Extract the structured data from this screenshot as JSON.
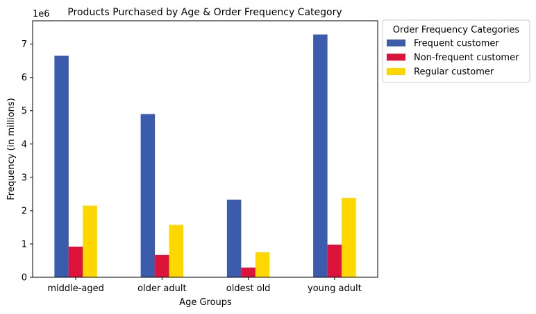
{
  "chart_data": {
    "type": "bar",
    "title": "Products Purchased by Age & Order Frequency Category",
    "xlabel": "Age Groups",
    "ylabel": "Frequency (in millions)",
    "y_exponent_label": "1e6",
    "categories": [
      "middle-aged",
      "older adult",
      "oldest old",
      "young adult"
    ],
    "series": [
      {
        "name": "Frequent customer",
        "color": "#3b5bad",
        "values": [
          6650000,
          4900000,
          2330000,
          7290000
        ]
      },
      {
        "name": "Non-frequent customer",
        "color": "#dc143c",
        "values": [
          920000,
          670000,
          290000,
          980000
        ]
      },
      {
        "name": "Regular customer",
        "color": "#ffd700",
        "values": [
          2150000,
          1570000,
          750000,
          2380000
        ]
      }
    ],
    "ylim": [
      0,
      7700000
    ],
    "y_ticks": [
      0,
      1000000,
      2000000,
      3000000,
      4000000,
      5000000,
      6000000,
      7000000
    ],
    "y_tick_labels": [
      "0",
      "1",
      "2",
      "3",
      "4",
      "5",
      "6",
      "7"
    ],
    "grid": false,
    "legend": {
      "title": "Order Frequency Categories",
      "placement": "outside-top-right"
    }
  }
}
